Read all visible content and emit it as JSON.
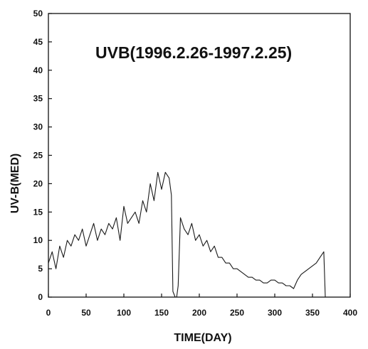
{
  "chart_data": {
    "type": "line",
    "title": "UVB(1996.2.26-1997.2.25)",
    "xlabel": "TIME(DAY)",
    "ylabel": "UV-B(MED)",
    "xlim": [
      0,
      400
    ],
    "ylim": [
      0,
      50
    ],
    "x_ticks": [
      0,
      50,
      100,
      150,
      200,
      250,
      300,
      350,
      400
    ],
    "y_ticks": [
      0,
      5,
      10,
      15,
      20,
      25,
      30,
      35,
      40,
      45,
      50
    ],
    "grid": false,
    "legend": "none",
    "line_color": "#1a1a1a",
    "series": [
      {
        "x": [
          0,
          5,
          10,
          15,
          20,
          25,
          30,
          35,
          40,
          45,
          50,
          55,
          60,
          65,
          70,
          75,
          80,
          85,
          90,
          95,
          100,
          105,
          110,
          115,
          120,
          125,
          130,
          135,
          140,
          145,
          150,
          155,
          160,
          163,
          165,
          168,
          170,
          172,
          175,
          180,
          185,
          190,
          195,
          200,
          205,
          210,
          215,
          220,
          225,
          230,
          235,
          240,
          245,
          250,
          255,
          260,
          265,
          270,
          275,
          280,
          285,
          290,
          295,
          300,
          305,
          310,
          315,
          320,
          325,
          330,
          335,
          340,
          345,
          350,
          355,
          360,
          365,
          367
        ],
        "y": [
          6,
          8,
          5,
          9,
          7,
          10,
          9,
          11,
          10,
          12,
          9,
          11,
          13,
          10,
          12,
          11,
          13,
          12,
          14,
          10,
          16,
          13,
          14,
          15,
          13,
          17,
          15,
          20,
          17,
          22,
          19,
          22,
          21,
          18,
          1,
          0,
          0,
          2,
          14,
          12,
          11,
          13,
          10,
          11,
          9,
          10,
          8,
          9,
          7,
          7,
          6,
          6,
          5,
          5,
          4.5,
          4,
          3.5,
          3.5,
          3,
          3,
          2.5,
          2.5,
          3,
          3,
          2.5,
          2.5,
          2,
          2,
          1.5,
          3,
          4,
          4.5,
          5,
          5.5,
          6,
          7,
          8,
          0
        ]
      }
    ]
  }
}
